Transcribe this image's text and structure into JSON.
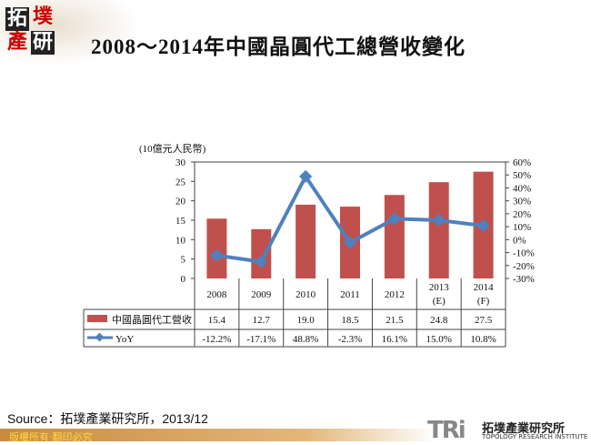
{
  "logo": {
    "chars": [
      "拓",
      "墣",
      "產",
      "研"
    ]
  },
  "title": "2008～2014年中國晶圓代工總營收變化",
  "chart_data": {
    "type": "bar+line",
    "unit_label": "(10億元人民幣)",
    "categories": [
      "2008",
      "2009",
      "2010",
      "2011",
      "2012",
      "2013\n(E)",
      "2014\n(F)"
    ],
    "series": [
      {
        "name": "中國晶圓代工營收",
        "type": "bar",
        "axis": "left",
        "color": "#c0504d",
        "values": [
          15.4,
          12.7,
          19.0,
          18.5,
          21.5,
          24.8,
          27.5
        ],
        "labels": [
          "15.4",
          "12.7",
          "19.0",
          "18.5",
          "21.5",
          "24.8",
          "27.5"
        ]
      },
      {
        "name": "YoY",
        "type": "line",
        "axis": "right",
        "color": "#4f81bd",
        "values": [
          -12.2,
          -17.1,
          48.8,
          -2.3,
          16.1,
          15.0,
          10.8
        ],
        "labels": [
          "-12.2%",
          "-17.1%",
          "48.8%",
          "-2.3%",
          "16.1%",
          "15.0%",
          "10.8%"
        ]
      }
    ],
    "ylim_left": [
      0,
      30
    ],
    "yticks_left": [
      "0",
      "5",
      "10",
      "15",
      "20",
      "25",
      "30"
    ],
    "ylim_right": [
      -30,
      60
    ],
    "yticks_right": [
      "-30%",
      "-20%",
      "-10%",
      "0%",
      "10%",
      "20%",
      "30%",
      "40%",
      "50%",
      "60%"
    ],
    "grid": false,
    "legend": "data-table"
  },
  "source": "Source：拓墣產業研究所，2013/12",
  "footer": "版權所有‧翻印必究",
  "brand": {
    "mark": "TRi",
    "name": "拓墣產業研究所",
    "name_en": "TOPOLOGY RESEARCH INSTITUTE"
  }
}
